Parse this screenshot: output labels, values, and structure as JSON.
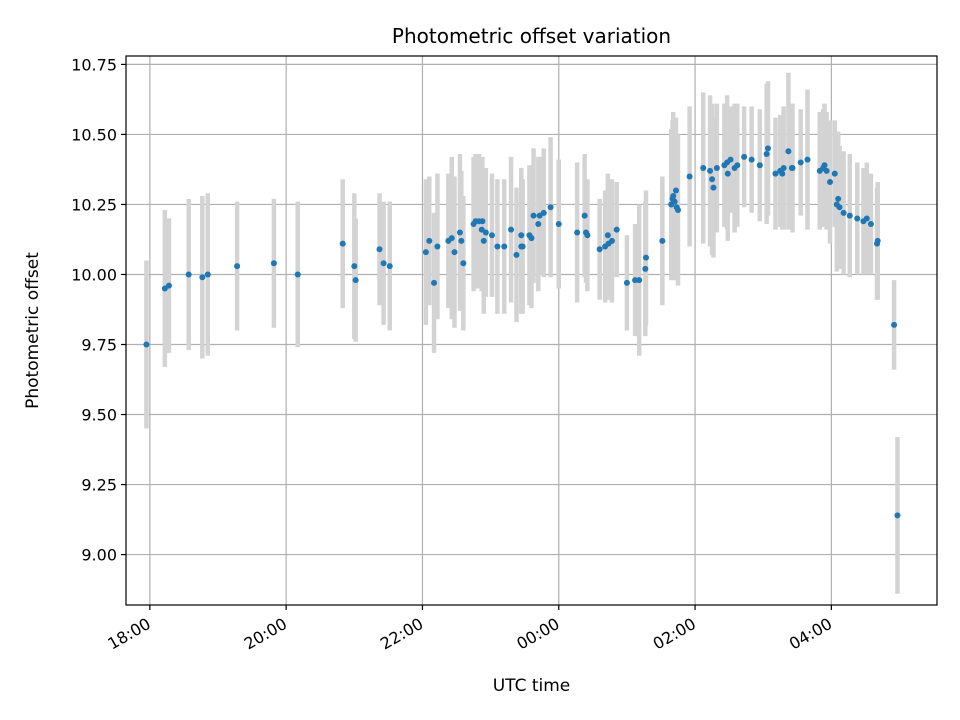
{
  "chart_data": {
    "type": "scatter",
    "title": "Photometric offset variation",
    "xlabel": "UTC time",
    "ylabel": "Photometric offset",
    "x_unit": "hours",
    "xlim": [
      17.65,
      29.55
    ],
    "ylim": [
      8.82,
      10.78
    ],
    "x_ticks": [
      {
        "value": 18,
        "label": "18:00"
      },
      {
        "value": 20,
        "label": "20:00"
      },
      {
        "value": 22,
        "label": "22:00"
      },
      {
        "value": 24,
        "label": "00:00"
      },
      {
        "value": 26,
        "label": "02:00"
      },
      {
        "value": 28,
        "label": "04:00"
      }
    ],
    "y_ticks": [
      {
        "value": 9.0,
        "label": "9.00"
      },
      {
        "value": 9.25,
        "label": "9.25"
      },
      {
        "value": 9.5,
        "label": "9.50"
      },
      {
        "value": 9.75,
        "label": "9.75"
      },
      {
        "value": 10.0,
        "label": "10.00"
      },
      {
        "value": 10.25,
        "label": "10.25"
      },
      {
        "value": 10.5,
        "label": "10.50"
      },
      {
        "value": 10.75,
        "label": "10.75"
      }
    ],
    "grid": true,
    "colors": {
      "points": "#1f77b4",
      "errorbars": "#d3d3d3",
      "grid": "#b0b0b0"
    },
    "series": [
      {
        "x": [
          17.95,
          18.22,
          18.28,
          18.57,
          18.77,
          18.85,
          19.28,
          19.82,
          20.17,
          20.83,
          21.0,
          21.02,
          21.37,
          21.43,
          21.52,
          22.05,
          22.1,
          22.17,
          22.22,
          22.38,
          22.43,
          22.47,
          22.55,
          22.57,
          22.6,
          22.75,
          22.78,
          22.83,
          22.87,
          22.88,
          22.9,
          22.93,
          23.02,
          23.1,
          23.2,
          23.3,
          23.38,
          23.45,
          23.45,
          23.47,
          23.57,
          23.6,
          23.63,
          23.7,
          23.72,
          23.78,
          23.88,
          24.0,
          24.27,
          24.38,
          24.4,
          24.42,
          24.6,
          24.68,
          24.72,
          24.73,
          24.78,
          24.85,
          25.0,
          25.12,
          25.18,
          25.27,
          25.28,
          25.52,
          25.65,
          25.67,
          25.68,
          25.7,
          25.72,
          25.73,
          25.75,
          25.92,
          26.12,
          26.22,
          26.25,
          26.27,
          26.32,
          26.43,
          26.47,
          26.48,
          26.52,
          26.58,
          26.62,
          26.72,
          26.83,
          26.95,
          27.05,
          27.07,
          27.18,
          27.25,
          27.28,
          27.3,
          27.37,
          27.42,
          27.43,
          27.55,
          27.65,
          27.83,
          27.88,
          27.9,
          27.93,
          27.98,
          28.05,
          28.08,
          28.1,
          28.12,
          28.18,
          28.27,
          28.38,
          28.47,
          28.52,
          28.58,
          28.67,
          28.68,
          28.92,
          28.97
        ],
        "y": [
          9.75,
          9.95,
          9.96,
          10.0,
          9.99,
          10.0,
          10.03,
          10.04,
          10.0,
          10.11,
          10.03,
          9.98,
          10.09,
          10.04,
          10.03,
          10.08,
          10.12,
          9.97,
          10.1,
          10.12,
          10.13,
          10.08,
          10.15,
          10.12,
          10.04,
          10.18,
          10.19,
          10.19,
          10.16,
          10.19,
          10.12,
          10.15,
          10.14,
          10.1,
          10.1,
          10.16,
          10.07,
          10.1,
          10.14,
          10.1,
          10.14,
          10.13,
          10.21,
          10.18,
          10.21,
          10.22,
          10.24,
          10.18,
          10.15,
          10.21,
          10.15,
          10.14,
          10.09,
          10.1,
          10.14,
          10.11,
          10.12,
          10.16,
          9.97,
          9.98,
          9.98,
          10.02,
          10.06,
          10.12,
          10.25,
          10.27,
          10.28,
          10.26,
          10.3,
          10.24,
          10.23,
          10.35,
          10.38,
          10.37,
          10.34,
          10.31,
          10.38,
          10.39,
          10.4,
          10.36,
          10.41,
          10.38,
          10.39,
          10.42,
          10.41,
          10.39,
          10.43,
          10.45,
          10.36,
          10.37,
          10.36,
          10.38,
          10.44,
          10.38,
          10.38,
          10.4,
          10.41,
          10.37,
          10.38,
          10.39,
          10.37,
          10.33,
          10.36,
          10.25,
          10.27,
          10.24,
          10.22,
          10.21,
          10.2,
          10.19,
          10.2,
          10.18,
          10.11,
          10.12,
          9.82,
          9.14
        ],
        "err": [
          0.3,
          0.28,
          0.24,
          0.27,
          0.29,
          0.29,
          0.23,
          0.23,
          0.26,
          0.23,
          0.26,
          0.22,
          0.2,
          0.22,
          0.23,
          0.26,
          0.23,
          0.25,
          0.26,
          0.24,
          0.29,
          0.27,
          0.28,
          0.25,
          0.24,
          0.24,
          0.24,
          0.24,
          0.22,
          0.23,
          0.26,
          0.23,
          0.22,
          0.24,
          0.24,
          0.26,
          0.24,
          0.24,
          0.24,
          0.24,
          0.25,
          0.25,
          0.24,
          0.24,
          0.21,
          0.23,
          0.25,
          0.23,
          0.25,
          0.22,
          0.18,
          0.2,
          0.18,
          0.2,
          0.22,
          0.2,
          0.22,
          0.17,
          0.17,
          0.2,
          0.27,
          0.24,
          0.24,
          0.23,
          0.27,
          0.28,
          0.3,
          0.28,
          0.26,
          0.26,
          0.27,
          0.25,
          0.27,
          0.27,
          0.27,
          0.25,
          0.23,
          0.22,
          0.24,
          0.24,
          0.19,
          0.23,
          0.22,
          0.18,
          0.19,
          0.2,
          0.25,
          0.24,
          0.2,
          0.2,
          0.2,
          0.22,
          0.28,
          0.21,
          0.23,
          0.19,
          0.25,
          0.21,
          0.21,
          0.22,
          0.21,
          0.22,
          0.19,
          0.24,
          0.24,
          0.22,
          0.22,
          0.22,
          0.2,
          0.19,
          0.2,
          0.18,
          0.2,
          0.21,
          0.16,
          0.28
        ]
      }
    ]
  }
}
